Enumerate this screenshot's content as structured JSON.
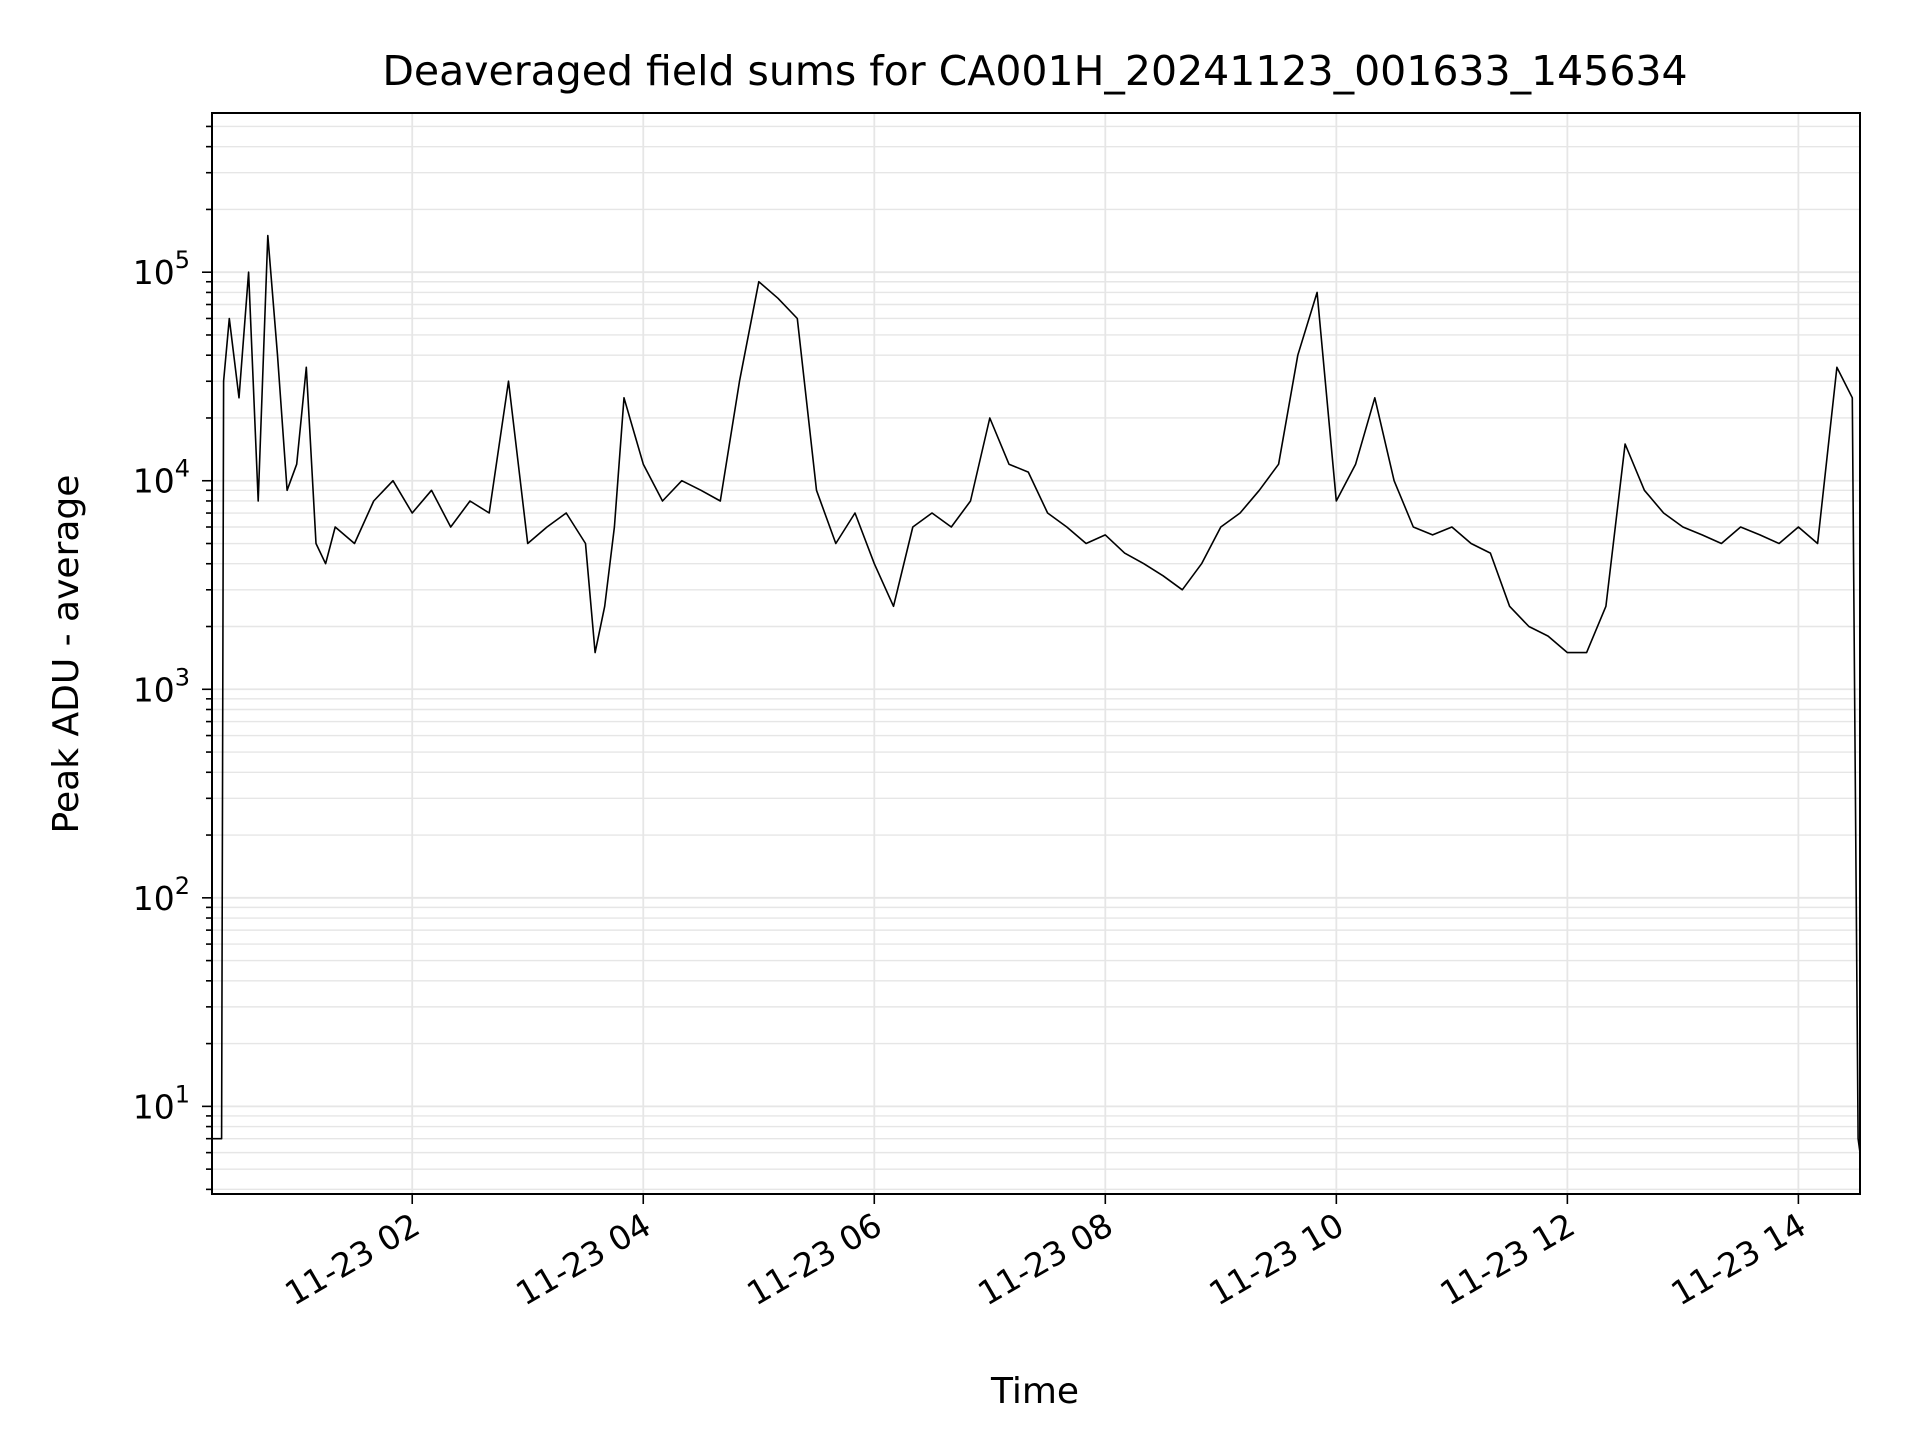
{
  "chart_data": {
    "type": "line",
    "title": "Deaveraged field sums for CA001H_20241123_001633_145634",
    "xlabel": "Time",
    "ylabel": "Peak ADU - average",
    "y_scale": "log",
    "ylim": [
      3.8,
      580000
    ],
    "xlim": [
      "2024-11-23 00:16",
      "2024-11-23 14:32"
    ],
    "grid": true,
    "line_color": "#000000",
    "grid_color": "#e6e6e6",
    "x_ticks": [
      {
        "value": "2024-11-23 02:00",
        "label": "11-23 02"
      },
      {
        "value": "2024-11-23 04:00",
        "label": "11-23 04"
      },
      {
        "value": "2024-11-23 06:00",
        "label": "11-23 06"
      },
      {
        "value": "2024-11-23 08:00",
        "label": "11-23 08"
      },
      {
        "value": "2024-11-23 10:00",
        "label": "11-23 10"
      },
      {
        "value": "2024-11-23 12:00",
        "label": "11-23 12"
      },
      {
        "value": "2024-11-23 14:00",
        "label": "11-23 14"
      }
    ],
    "y_ticks": [
      {
        "value": 10,
        "base": "10",
        "exp": "1"
      },
      {
        "value": 100,
        "base": "10",
        "exp": "2"
      },
      {
        "value": 1000,
        "base": "10",
        "exp": "3"
      },
      {
        "value": 10000,
        "base": "10",
        "exp": "4"
      },
      {
        "value": 100000,
        "base": "10",
        "exp": "5"
      }
    ],
    "series": [
      {
        "x": [
          "2024-11-23 00:16",
          "2024-11-23 00:21",
          "2024-11-23 00:22",
          "2024-11-23 00:25",
          "2024-11-23 00:30",
          "2024-11-23 00:35",
          "2024-11-23 00:40",
          "2024-11-23 00:45",
          "2024-11-23 00:50",
          "2024-11-23 00:55",
          "2024-11-23 01:00",
          "2024-11-23 01:05",
          "2024-11-23 01:10",
          "2024-11-23 01:15",
          "2024-11-23 01:20",
          "2024-11-23 01:30",
          "2024-11-23 01:40",
          "2024-11-23 01:50",
          "2024-11-23 02:00",
          "2024-11-23 02:10",
          "2024-11-23 02:20",
          "2024-11-23 02:30",
          "2024-11-23 02:40",
          "2024-11-23 02:50",
          "2024-11-23 03:00",
          "2024-11-23 03:10",
          "2024-11-23 03:20",
          "2024-11-23 03:30",
          "2024-11-23 03:35",
          "2024-11-23 03:40",
          "2024-11-23 03:45",
          "2024-11-23 03:50",
          "2024-11-23 04:00",
          "2024-11-23 04:10",
          "2024-11-23 04:20",
          "2024-11-23 04:30",
          "2024-11-23 04:40",
          "2024-11-23 04:50",
          "2024-11-23 05:00",
          "2024-11-23 05:10",
          "2024-11-23 05:20",
          "2024-11-23 05:30",
          "2024-11-23 05:40",
          "2024-11-23 05:50",
          "2024-11-23 06:00",
          "2024-11-23 06:10",
          "2024-11-23 06:20",
          "2024-11-23 06:30",
          "2024-11-23 06:40",
          "2024-11-23 06:50",
          "2024-11-23 07:00",
          "2024-11-23 07:10",
          "2024-11-23 07:20",
          "2024-11-23 07:30",
          "2024-11-23 07:40",
          "2024-11-23 07:50",
          "2024-11-23 08:00",
          "2024-11-23 08:10",
          "2024-11-23 08:20",
          "2024-11-23 08:30",
          "2024-11-23 08:40",
          "2024-11-23 08:50",
          "2024-11-23 09:00",
          "2024-11-23 09:10",
          "2024-11-23 09:20",
          "2024-11-23 09:30",
          "2024-11-23 09:40",
          "2024-11-23 09:50",
          "2024-11-23 10:00",
          "2024-11-23 10:10",
          "2024-11-23 10:20",
          "2024-11-23 10:30",
          "2024-11-23 10:40",
          "2024-11-23 10:50",
          "2024-11-23 11:00",
          "2024-11-23 11:10",
          "2024-11-23 11:20",
          "2024-11-23 11:30",
          "2024-11-23 11:40",
          "2024-11-23 11:50",
          "2024-11-23 12:00",
          "2024-11-23 12:10",
          "2024-11-23 12:20",
          "2024-11-23 12:30",
          "2024-11-23 12:40",
          "2024-11-23 12:50",
          "2024-11-23 13:00",
          "2024-11-23 13:10",
          "2024-11-23 13:20",
          "2024-11-23 13:30",
          "2024-11-23 13:40",
          "2024-11-23 13:50",
          "2024-11-23 14:00",
          "2024-11-23 14:10",
          "2024-11-23 14:20",
          "2024-11-23 14:28",
          "2024-11-23 14:31",
          "2024-11-23 14:32"
        ],
        "y": [
          7,
          7,
          30000,
          60000,
          25000,
          100000,
          8000,
          150000,
          40000,
          9000,
          12000,
          35000,
          5000,
          4000,
          6000,
          5000,
          8000,
          10000,
          7000,
          9000,
          6000,
          8000,
          7000,
          30000,
          5000,
          6000,
          7000,
          5000,
          1500,
          2500,
          6000,
          25000,
          12000,
          8000,
          10000,
          9000,
          8000,
          30000,
          90000,
          75000,
          60000,
          9000,
          5000,
          7000,
          4000,
          2500,
          6000,
          7000,
          6000,
          8000,
          20000,
          12000,
          11000,
          7000,
          6000,
          5000,
          5500,
          4500,
          4000,
          3500,
          3000,
          4000,
          6000,
          7000,
          9000,
          12000,
          40000,
          80000,
          8000,
          12000,
          25000,
          10000,
          6000,
          5500,
          6000,
          5000,
          4500,
          2500,
          2000,
          1800,
          1500,
          1500,
          2500,
          15000,
          9000,
          7000,
          6000,
          5500,
          5000,
          6000,
          5500,
          5000,
          6000,
          5000,
          35000,
          25000,
          7,
          6
        ]
      }
    ]
  }
}
